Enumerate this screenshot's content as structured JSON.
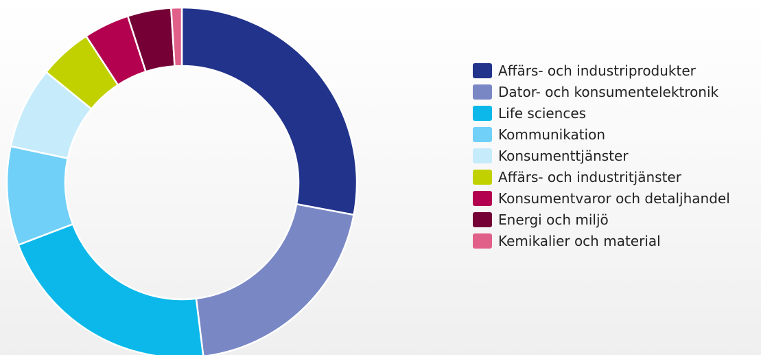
{
  "chart_data": {
    "type": "pie",
    "variant": "donut",
    "legend_position": "right",
    "series": [
      {
        "label": "Affärs- och industriprodukter",
        "value": 28.5,
        "color": "#22338b"
      },
      {
        "label": "Dator- och konsumentelektronik",
        "value": 20.5,
        "color": "#7988c5"
      },
      {
        "label": "Life sciences",
        "value": 21.6,
        "color": "#0cb8ea"
      },
      {
        "label": "Kommunikation",
        "value": 9.3,
        "color": "#70d0f7"
      },
      {
        "label": "Konsumenttjänster",
        "value": 7.7,
        "color": "#c6ebfb"
      },
      {
        "label": "Affärs- och industritjänster",
        "value": 5.0,
        "color": "#c1d100"
      },
      {
        "label": "Konsumentvaror och detaljhandel",
        "value": 4.3,
        "color": "#b3004f"
      },
      {
        "label": "Energi och miljö",
        "value": 4.1,
        "color": "#740036"
      },
      {
        "label": "Kemikalier och material",
        "value": 1.0,
        "color": "#e0608a"
      }
    ]
  }
}
